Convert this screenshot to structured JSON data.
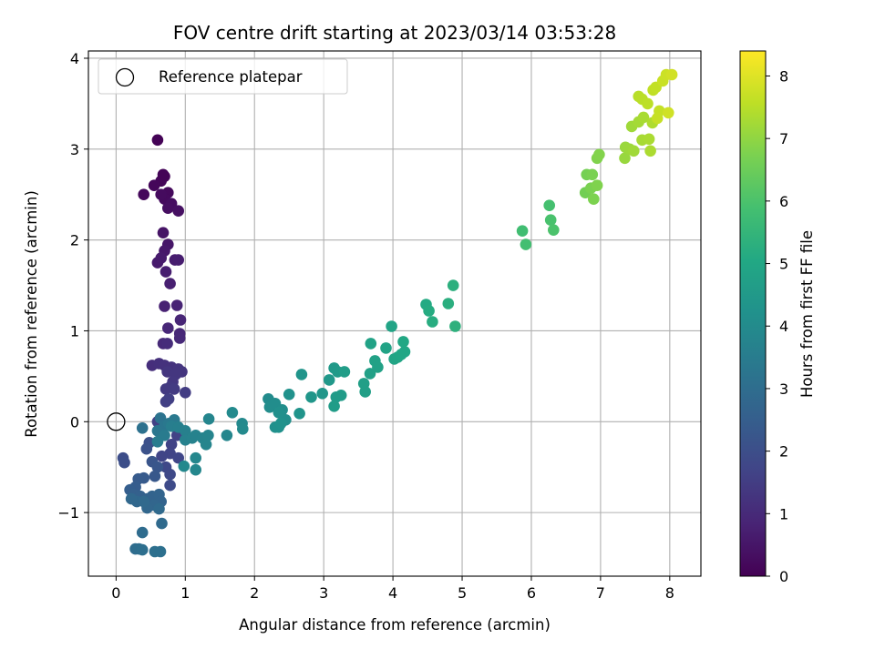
{
  "chart_data": {
    "type": "scatter",
    "title": "FOV centre drift starting at 2023/03/14 03:53:28",
    "xlabel": "Angular distance from reference (arcmin)",
    "ylabel": "Rotation from reference (arcmin)",
    "xlim": [
      -0.4,
      8.45
    ],
    "ylim": [
      -1.7,
      4.08
    ],
    "x_ticks": [
      0,
      1,
      2,
      3,
      4,
      5,
      6,
      7,
      8
    ],
    "y_ticks": [
      -1,
      0,
      1,
      2,
      3,
      4
    ],
    "x_tick_labels": [
      "0",
      "1",
      "2",
      "3",
      "4",
      "5",
      "6",
      "7",
      "8"
    ],
    "y_tick_labels": [
      "−1",
      "0",
      "1",
      "2",
      "3",
      "4"
    ],
    "grid": true,
    "legend": {
      "position": "top-left",
      "entries": [
        "Reference platepar"
      ]
    },
    "reference_point": {
      "x": 0,
      "y": 0,
      "label": "Reference platepar"
    },
    "colorbar": {
      "label": "Hours from first FF file",
      "range": [
        0,
        8.4
      ],
      "ticks": [
        0,
        1,
        2,
        3,
        4,
        5,
        6,
        7,
        8
      ],
      "tick_labels": [
        "0",
        "1",
        "2",
        "3",
        "4",
        "5",
        "6",
        "7",
        "8"
      ],
      "colormap": "viridis"
    },
    "points": [
      [
        0.6,
        3.1,
        0.05
      ],
      [
        0.7,
        2.7,
        0.1
      ],
      [
        0.65,
        2.65,
        0.12
      ],
      [
        0.55,
        2.6,
        0.15
      ],
      [
        0.4,
        2.5,
        0.18
      ],
      [
        0.75,
        2.52,
        0.2
      ],
      [
        0.7,
        2.45,
        0.22
      ],
      [
        0.65,
        2.5,
        0.25
      ],
      [
        0.8,
        2.4,
        0.3
      ],
      [
        0.75,
        2.35,
        0.32
      ],
      [
        0.9,
        2.32,
        0.35
      ],
      [
        0.68,
        2.72,
        0.08
      ],
      [
        0.68,
        2.08,
        0.45
      ],
      [
        0.75,
        1.95,
        0.5
      ],
      [
        0.7,
        1.88,
        0.55
      ],
      [
        0.6,
        1.75,
        0.6
      ],
      [
        0.65,
        1.8,
        0.62
      ],
      [
        0.85,
        1.78,
        0.65
      ],
      [
        0.9,
        1.78,
        0.68
      ],
      [
        0.72,
        1.65,
        0.7
      ],
      [
        0.78,
        1.52,
        0.75
      ],
      [
        0.7,
        1.27,
        0.8
      ],
      [
        0.88,
        1.28,
        0.85
      ],
      [
        0.93,
        1.12,
        0.88
      ],
      [
        0.75,
        1.03,
        0.92
      ],
      [
        0.92,
        0.97,
        0.95
      ],
      [
        0.92,
        0.92,
        0.98
      ],
      [
        0.68,
        0.86,
        1.0
      ],
      [
        0.74,
        0.86,
        1.05
      ],
      [
        0.52,
        0.62,
        1.1
      ],
      [
        0.62,
        0.64,
        1.15
      ],
      [
        0.7,
        0.62,
        1.2
      ],
      [
        0.8,
        0.6,
        1.22
      ],
      [
        0.9,
        0.58,
        1.25
      ],
      [
        0.95,
        0.55,
        1.28
      ],
      [
        0.74,
        0.55,
        1.3
      ],
      [
        0.86,
        0.52,
        1.32
      ],
      [
        0.82,
        0.44,
        1.35
      ],
      [
        0.78,
        0.38,
        1.4
      ],
      [
        0.72,
        0.36,
        1.42
      ],
      [
        0.84,
        0.36,
        1.45
      ],
      [
        1.0,
        0.32,
        1.5
      ],
      [
        0.76,
        0.25,
        1.55
      ],
      [
        0.72,
        0.22,
        1.58
      ],
      [
        0.6,
        0.0,
        1.6
      ],
      [
        0.88,
        -0.15,
        1.62
      ],
      [
        0.8,
        -0.25,
        1.65
      ],
      [
        0.78,
        -0.35,
        1.7
      ],
      [
        0.66,
        -0.38,
        1.72
      ],
      [
        0.9,
        -0.4,
        1.75
      ],
      [
        0.72,
        -0.5,
        1.8
      ],
      [
        0.78,
        -0.58,
        1.85
      ],
      [
        0.78,
        -0.7,
        1.9
      ],
      [
        0.1,
        -0.4,
        1.95
      ],
      [
        0.12,
        -0.45,
        2.0
      ],
      [
        0.48,
        -0.23,
        2.05
      ],
      [
        0.44,
        -0.3,
        2.1
      ],
      [
        0.52,
        -0.44,
        2.2
      ],
      [
        0.6,
        -0.5,
        2.25
      ],
      [
        0.56,
        -0.6,
        2.3
      ],
      [
        0.4,
        -0.62,
        2.35
      ],
      [
        0.32,
        -0.63,
        2.4
      ],
      [
        0.28,
        -0.72,
        2.45
      ],
      [
        0.2,
        -0.75,
        2.5
      ],
      [
        0.25,
        -0.8,
        2.55
      ],
      [
        0.35,
        -0.82,
        2.6
      ],
      [
        0.45,
        -0.85,
        2.62
      ],
      [
        0.52,
        -0.82,
        2.65
      ],
      [
        0.62,
        -0.8,
        2.68
      ],
      [
        0.65,
        -0.88,
        2.7
      ],
      [
        0.55,
        -0.92,
        2.75
      ],
      [
        0.45,
        -0.95,
        2.78
      ],
      [
        0.3,
        -0.88,
        2.8
      ],
      [
        0.22,
        -0.85,
        2.82
      ],
      [
        0.4,
        -0.88,
        2.85
      ],
      [
        0.62,
        -0.96,
        2.88
      ],
      [
        0.66,
        -1.12,
        2.9
      ],
      [
        0.38,
        -1.22,
        2.95
      ],
      [
        0.28,
        -1.4,
        3.0
      ],
      [
        0.33,
        -1.4,
        3.02
      ],
      [
        0.38,
        -1.41,
        3.05
      ],
      [
        0.56,
        -1.43,
        3.08
      ],
      [
        0.64,
        -1.43,
        3.1
      ],
      [
        0.38,
        -0.07,
        3.12
      ],
      [
        0.64,
        0.04,
        3.2
      ],
      [
        0.7,
        -0.05,
        3.25
      ],
      [
        0.6,
        -0.1,
        3.3
      ],
      [
        0.76,
        -0.02,
        3.35
      ],
      [
        0.84,
        0.02,
        3.4
      ],
      [
        0.7,
        -0.15,
        3.45
      ],
      [
        0.6,
        -0.22,
        3.5
      ],
      [
        0.8,
        -0.05,
        3.55
      ],
      [
        0.9,
        -0.06,
        3.6
      ],
      [
        1.0,
        -0.1,
        3.62
      ],
      [
        1.0,
        -0.2,
        3.65
      ],
      [
        1.1,
        -0.18,
        3.68
      ],
      [
        1.15,
        -0.15,
        3.7
      ],
      [
        1.25,
        -0.18,
        3.72
      ],
      [
        1.33,
        -0.15,
        3.75
      ],
      [
        1.3,
        -0.25,
        3.78
      ],
      [
        1.34,
        0.03,
        3.8
      ],
      [
        1.6,
        -0.15,
        3.82
      ],
      [
        1.15,
        -0.4,
        3.85
      ],
      [
        1.15,
        -0.53,
        3.88
      ],
      [
        0.98,
        -0.49,
        3.9
      ],
      [
        1.82,
        -0.02,
        3.92
      ],
      [
        1.83,
        -0.08,
        3.95
      ],
      [
        1.68,
        0.1,
        3.98
      ],
      [
        2.2,
        0.25,
        4.0
      ],
      [
        2.22,
        0.16,
        4.05
      ],
      [
        2.3,
        0.2,
        4.08
      ],
      [
        2.4,
        0.13,
        4.1
      ],
      [
        2.45,
        0.02,
        4.12
      ],
      [
        2.35,
        0.1,
        4.15
      ],
      [
        2.3,
        -0.06,
        4.18
      ],
      [
        2.35,
        -0.06,
        4.2
      ],
      [
        2.38,
        -0.02,
        4.22
      ],
      [
        2.5,
        0.3,
        4.25
      ],
      [
        2.65,
        0.09,
        4.3
      ],
      [
        2.68,
        0.52,
        4.35
      ],
      [
        2.82,
        0.27,
        4.38
      ],
      [
        2.98,
        0.31,
        4.4
      ],
      [
        3.08,
        0.46,
        4.45
      ],
      [
        3.15,
        0.59,
        4.5
      ],
      [
        3.2,
        0.55,
        4.52
      ],
      [
        3.18,
        0.27,
        4.55
      ],
      [
        3.25,
        0.29,
        4.58
      ],
      [
        3.15,
        0.17,
        4.6
      ],
      [
        3.3,
        0.55,
        4.62
      ],
      [
        3.58,
        0.42,
        4.7
      ],
      [
        3.6,
        0.33,
        4.72
      ],
      [
        3.67,
        0.53,
        4.75
      ],
      [
        3.74,
        0.67,
        4.78
      ],
      [
        3.78,
        0.6,
        4.8
      ],
      [
        3.68,
        0.86,
        4.82
      ],
      [
        3.9,
        0.81,
        4.85
      ],
      [
        3.98,
        1.05,
        4.88
      ],
      [
        4.02,
        0.69,
        4.9
      ],
      [
        4.07,
        0.71,
        4.92
      ],
      [
        4.12,
        0.74,
        4.95
      ],
      [
        4.17,
        0.77,
        4.98
      ],
      [
        4.15,
        0.88,
        5.0
      ],
      [
        4.48,
        1.29,
        5.1
      ],
      [
        4.52,
        1.22,
        5.15
      ],
      [
        4.57,
        1.1,
        5.2
      ],
      [
        4.8,
        1.3,
        5.25
      ],
      [
        4.87,
        1.5,
        5.3
      ],
      [
        4.9,
        1.05,
        5.35
      ],
      [
        5.87,
        2.1,
        5.8
      ],
      [
        5.92,
        1.95,
        5.85
      ],
      [
        6.26,
        2.38,
        5.9
      ],
      [
        6.28,
        2.22,
        5.95
      ],
      [
        6.32,
        2.11,
        6.0
      ],
      [
        6.78,
        2.52,
        6.6
      ],
      [
        6.8,
        2.72,
        6.65
      ],
      [
        6.88,
        2.72,
        6.7
      ],
      [
        6.86,
        2.57,
        6.72
      ],
      [
        6.9,
        2.45,
        6.75
      ],
      [
        6.95,
        2.6,
        6.78
      ],
      [
        6.95,
        2.9,
        6.8
      ],
      [
        6.98,
        2.94,
        6.82
      ],
      [
        7.35,
        2.9,
        7.1
      ],
      [
        7.36,
        3.02,
        7.12
      ],
      [
        7.42,
        3.0,
        7.15
      ],
      [
        7.45,
        3.25,
        7.18
      ],
      [
        7.48,
        2.98,
        7.2
      ],
      [
        7.55,
        3.3,
        7.25
      ],
      [
        7.6,
        3.1,
        7.28
      ],
      [
        7.62,
        3.35,
        7.3
      ],
      [
        7.7,
        3.11,
        7.32
      ],
      [
        7.72,
        2.98,
        7.35
      ],
      [
        7.75,
        3.29,
        7.38
      ],
      [
        7.55,
        3.58,
        7.5
      ],
      [
        7.6,
        3.55,
        7.52
      ],
      [
        7.68,
        3.5,
        7.55
      ],
      [
        7.76,
        3.65,
        7.6
      ],
      [
        7.8,
        3.68,
        7.62
      ],
      [
        7.85,
        3.42,
        7.65
      ],
      [
        7.82,
        3.34,
        7.68
      ],
      [
        7.9,
        3.75,
        7.72
      ],
      [
        7.95,
        3.82,
        7.75
      ],
      [
        7.98,
        3.4,
        7.8
      ],
      [
        8.03,
        3.82,
        7.82
      ]
    ]
  }
}
